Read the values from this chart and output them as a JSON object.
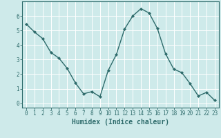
{
  "x": [
    0,
    1,
    2,
    3,
    4,
    5,
    6,
    7,
    8,
    9,
    10,
    11,
    12,
    13,
    14,
    15,
    16,
    17,
    18,
    19,
    20,
    21,
    22,
    23
  ],
  "y": [
    5.45,
    4.9,
    4.45,
    3.5,
    3.1,
    2.4,
    1.4,
    0.65,
    0.8,
    0.45,
    2.25,
    3.35,
    5.1,
    6.0,
    6.5,
    6.2,
    5.15,
    3.4,
    2.35,
    2.1,
    1.35,
    0.5,
    0.75,
    0.2
  ],
  "line_color": "#2e6b6b",
  "marker": "D",
  "marker_size": 2,
  "bg_color": "#ceeaea",
  "grid_color": "#ffffff",
  "xlabel": "Humidex (Indice chaleur)",
  "xlim": [
    -0.5,
    23.5
  ],
  "ylim": [
    -0.3,
    7.0
  ],
  "yticks": [
    0,
    1,
    2,
    3,
    4,
    5,
    6
  ],
  "xticks": [
    0,
    1,
    2,
    3,
    4,
    5,
    6,
    7,
    8,
    9,
    10,
    11,
    12,
    13,
    14,
    15,
    16,
    17,
    18,
    19,
    20,
    21,
    22,
    23
  ],
  "tick_label_fontsize": 5.5,
  "xlabel_fontsize": 7,
  "tick_color": "#2e6b6b",
  "spine_color": "#2e6b6b",
  "linewidth": 1.0
}
